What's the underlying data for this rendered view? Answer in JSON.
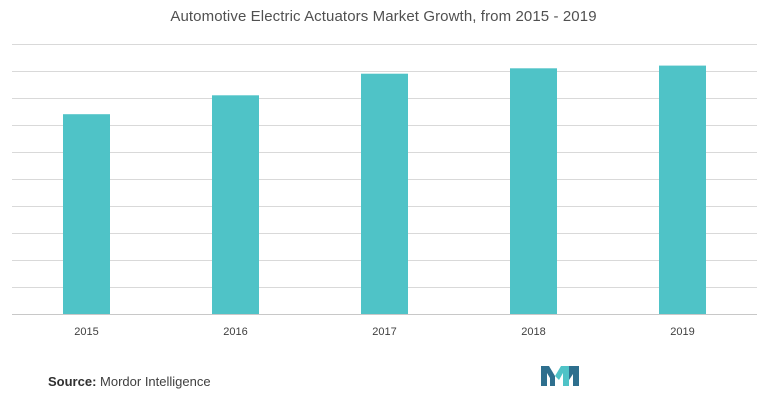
{
  "chart_data": {
    "type": "bar",
    "title": "Automotive Electric Actuators Market Growth, from 2015 - 2019",
    "categories": [
      "2015",
      "2016",
      "2017",
      "2018",
      "2019"
    ],
    "values": [
      7.4,
      8.1,
      8.9,
      9.1,
      9.2
    ],
    "ylim": [
      0,
      10
    ],
    "grid": true,
    "show_y_tick_labels": false,
    "bar_color": "#4fc3c7",
    "grid_color": "#d9d9d9"
  },
  "source": {
    "label": "Source:",
    "text": "Mordor Intelligence"
  },
  "logo": {
    "icon": "mordor-intelligence-logo-icon",
    "colors": [
      "#2e6f8e",
      "#4fc3c7"
    ]
  }
}
